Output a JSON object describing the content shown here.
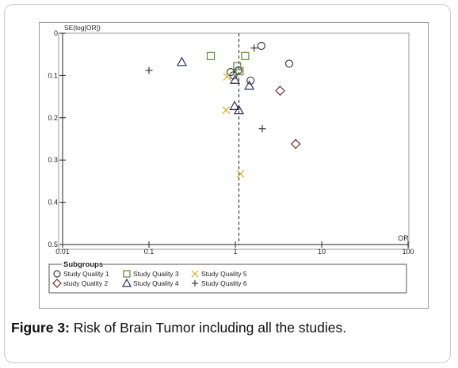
{
  "chart_data": {
    "type": "scatter",
    "title": "",
    "xlabel": "OR",
    "ylabel": "SE(log[OR])",
    "x_scale": "log",
    "xlim": [
      0.01,
      100
    ],
    "ylim": [
      0.5,
      0
    ],
    "x_ticks": [
      "0.01",
      "0.1",
      "1",
      "10",
      "100"
    ],
    "y_ticks": [
      "0",
      "0.1",
      "0.2",
      "0.3",
      "0.4",
      "0.5"
    ],
    "reference_line_or": 1.1,
    "legend_title": "Subgroups",
    "series": [
      {
        "name": "Study Quality 1",
        "marker": "circle",
        "color": "#3a3a3a",
        "points": [
          [
            2.0,
            0.03
          ],
          [
            4.2,
            0.072
          ],
          [
            1.5,
            0.112
          ],
          [
            0.88,
            0.092
          ],
          [
            0.95,
            0.1
          ],
          [
            1.08,
            0.088
          ]
        ]
      },
      {
        "name": "study Quality 2",
        "marker": "diamond",
        "color": "#6b2a2a",
        "points": [
          [
            3.3,
            0.136
          ],
          [
            5.0,
            0.262
          ]
        ]
      },
      {
        "name": "Study Quality 3",
        "marker": "square",
        "color": "#5c8a3a",
        "points": [
          [
            0.52,
            0.054
          ],
          [
            1.05,
            0.078
          ],
          [
            1.3,
            0.054
          ],
          [
            1.12,
            0.09
          ]
        ]
      },
      {
        "name": "Study Quality 4",
        "marker": "triangle",
        "color": "#2e2e5c",
        "points": [
          [
            0.24,
            0.068
          ],
          [
            0.99,
            0.11
          ],
          [
            1.45,
            0.124
          ],
          [
            0.98,
            0.172
          ],
          [
            1.1,
            0.182
          ]
        ]
      },
      {
        "name": "Study Quality 5",
        "marker": "x",
        "color": "#c9b21c",
        "points": [
          [
            0.8,
            0.103
          ],
          [
            0.78,
            0.182
          ],
          [
            1.15,
            0.333
          ]
        ]
      },
      {
        "name": "Study Quality 6",
        "marker": "plus",
        "color": "#3a3a3a",
        "points": [
          [
            0.1,
            0.088
          ],
          [
            1.65,
            0.035
          ],
          [
            2.05,
            0.226
          ]
        ]
      }
    ]
  },
  "caption": {
    "label": "Figure 3:",
    "text": " Risk of Brain Tumor including all the studies."
  }
}
